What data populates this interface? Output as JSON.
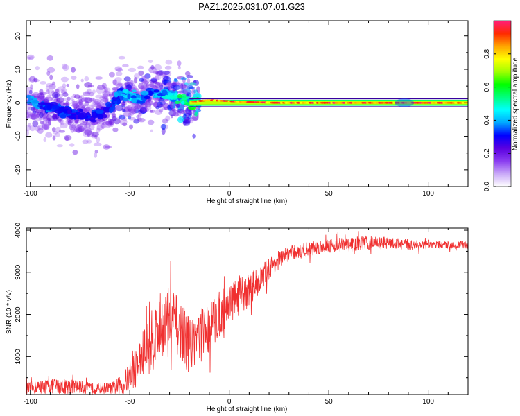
{
  "title": "PAZ1.2025.031.07.01.G23",
  "chart_data": [
    {
      "type": "heatmap",
      "title": "PAZ1.2025.031.07.01.G23",
      "xlabel": "Height of straight line (km)",
      "ylabel": "Frequency (Hz)",
      "xlim": [
        -102,
        120
      ],
      "ylim": [
        -25,
        24.5
      ],
      "x_ticks": [
        -100,
        -50,
        0,
        50,
        100
      ],
      "y_ticks": [
        -20,
        -10,
        0,
        10,
        20
      ],
      "grid": false,
      "colorbar": {
        "label": "Normalized spectral amplitude",
        "range": [
          0,
          1
        ],
        "ticks": [
          0.0,
          0.2,
          0.4,
          0.6,
          0.8
        ],
        "colormap": [
          "#ffffff",
          "#c9a8f8",
          "#8a3cf0",
          "#5a00e0",
          "#0000ff",
          "#00a8ff",
          "#00ffff",
          "#00ff80",
          "#00ff00",
          "#a0ff00",
          "#ffff00",
          "#ffa500",
          "#ff2a00",
          "#ff1e78"
        ]
      },
      "ridge": [
        {
          "x": -100,
          "freq": 0.5,
          "amp": 0.3
        },
        {
          "x": -90,
          "freq": -1.5,
          "amp": 0.25
        },
        {
          "x": -80,
          "freq": -3.0,
          "amp": 0.2
        },
        {
          "x": -70,
          "freq": -4.5,
          "amp": 0.2
        },
        {
          "x": -60,
          "freq": -2.0,
          "amp": 0.2
        },
        {
          "x": -55,
          "freq": 2.5,
          "amp": 0.35
        },
        {
          "x": -50,
          "freq": 2.0,
          "amp": 0.4
        },
        {
          "x": -45,
          "freq": 1.0,
          "amp": 0.35
        },
        {
          "x": -40,
          "freq": 3.0,
          "amp": 0.3
        },
        {
          "x": -30,
          "freq": 2.5,
          "amp": 0.45
        },
        {
          "x": -25,
          "freq": 1.0,
          "amp": 0.55
        },
        {
          "x": -20,
          "freq": 0.3,
          "amp": 0.6
        },
        {
          "x": -10,
          "freq": 0.8,
          "amp": 0.85
        },
        {
          "x": 0,
          "freq": 0.5,
          "amp": 0.9
        },
        {
          "x": 10,
          "freq": 0.2,
          "amp": 0.95
        },
        {
          "x": 25,
          "freq": 0.0,
          "amp": 1.0
        },
        {
          "x": 50,
          "freq": 0.0,
          "amp": 1.0
        },
        {
          "x": 80,
          "freq": 0.0,
          "amp": 1.0
        },
        {
          "x": 100,
          "freq": 0.0,
          "amp": 1.0
        },
        {
          "x": 120,
          "freq": 0.0,
          "amp": 1.0
        }
      ]
    },
    {
      "type": "line",
      "xlabel": "Height of straight line (km)",
      "ylabel": "SNR (10 * v/v)",
      "xlim": [
        -102,
        120
      ],
      "ylim": [
        100,
        4050
      ],
      "x_ticks": [
        -100,
        -50,
        0,
        50,
        100
      ],
      "y_ticks": [
        1000,
        2000,
        3000,
        4000
      ],
      "grid": false,
      "color": "#f03030",
      "series": [
        {
          "x": [
            -102,
            -90,
            -80,
            -70,
            -60,
            -55,
            -50,
            -45,
            -40,
            -35,
            -30,
            -25,
            -20,
            -15,
            -10,
            -5,
            0,
            5,
            10,
            15,
            20,
            25,
            30,
            40,
            50,
            60,
            70,
            80,
            90,
            100,
            110,
            120
          ],
          "values": [
            250,
            300,
            300,
            250,
            250,
            300,
            500,
            900,
            1300,
            1700,
            1900,
            1700,
            1300,
            1500,
            1700,
            2000,
            2300,
            2400,
            2600,
            2800,
            3100,
            3300,
            3450,
            3550,
            3650,
            3650,
            3700,
            3700,
            3650,
            3650,
            3650,
            3650
          ],
          "noise": [
            150,
            200,
            200,
            150,
            150,
            250,
            400,
            600,
            800,
            900,
            900,
            800,
            700,
            700,
            700,
            600,
            550,
            500,
            450,
            350,
            300,
            250,
            200,
            200,
            200,
            200,
            200,
            150,
            150,
            100,
            100,
            100
          ]
        }
      ]
    }
  ]
}
